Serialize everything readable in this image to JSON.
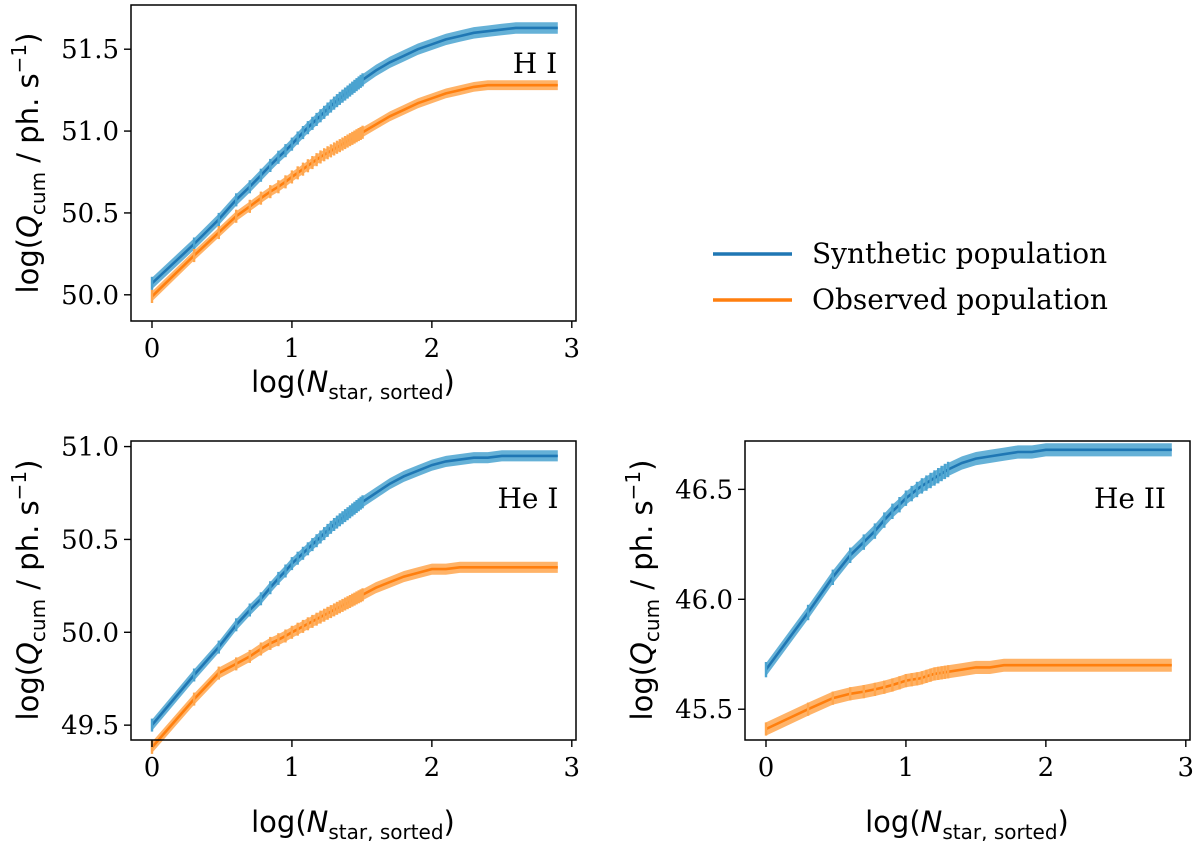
{
  "chart_data": [
    {
      "type": "line",
      "panel_label": "H I",
      "xlim": [
        -0.15,
        3.03
      ],
      "ylim": [
        49.84,
        51.77
      ],
      "xticks": [
        0,
        1,
        2,
        3
      ],
      "xtick_labels": [
        "0",
        "1",
        "2",
        "3"
      ],
      "yticks": [
        50.0,
        50.5,
        51.0,
        51.5
      ],
      "ytick_labels": [
        "50.0",
        "50.5",
        "51.0",
        "51.5"
      ],
      "xlabel": "log(N_star, sorted)",
      "ylabel": "log(Q_cum / ph. s^-1)",
      "grid": false,
      "series": [
        {
          "name": "Synthetic population",
          "color": "#1f77b4",
          "band_color": "#4aa3d0",
          "x": [
            0,
            0.301,
            0.477,
            0.602,
            0.699,
            0.778,
            0.845,
            0.903,
            0.954,
            1.0,
            1.1,
            1.2,
            1.3,
            1.4,
            1.5,
            1.6,
            1.7,
            1.8,
            1.9,
            2.0,
            2.1,
            2.2,
            2.3,
            2.4,
            2.5,
            2.6,
            2.7,
            2.8,
            2.9
          ],
          "y": [
            50.07,
            50.31,
            50.46,
            50.58,
            50.66,
            50.73,
            50.79,
            50.84,
            50.88,
            50.92,
            51.01,
            51.09,
            51.17,
            51.24,
            51.31,
            51.37,
            51.42,
            51.46,
            51.5,
            51.53,
            51.56,
            51.58,
            51.6,
            51.61,
            51.62,
            51.63,
            51.63,
            51.63,
            51.63
          ],
          "band": 0.035,
          "err": 0.04,
          "err_until_x": 1.5
        },
        {
          "name": "Observed population",
          "color": "#ff7f0e",
          "band_color": "#ffa64d",
          "x": [
            0,
            0.301,
            0.477,
            0.602,
            0.699,
            0.778,
            0.845,
            0.903,
            0.954,
            1.0,
            1.1,
            1.2,
            1.3,
            1.4,
            1.5,
            1.6,
            1.7,
            1.8,
            1.9,
            2.0,
            2.1,
            2.2,
            2.3,
            2.4,
            2.5,
            2.6,
            2.7,
            2.8,
            2.9
          ],
          "y": [
            49.99,
            50.24,
            50.38,
            50.48,
            50.54,
            50.59,
            50.63,
            50.66,
            50.69,
            50.72,
            50.78,
            50.84,
            50.89,
            50.94,
            50.99,
            51.04,
            51.09,
            51.13,
            51.17,
            51.2,
            51.23,
            51.25,
            51.27,
            51.28,
            51.28,
            51.28,
            51.28,
            51.28,
            51.28
          ],
          "band": 0.03,
          "err": 0.04,
          "err_until_x": 1.5
        }
      ]
    },
    {
      "type": "line",
      "panel_label": "He I",
      "xlim": [
        -0.15,
        3.03
      ],
      "ylim": [
        49.42,
        51.03
      ],
      "xticks": [
        0,
        1,
        2,
        3
      ],
      "xtick_labels": [
        "0",
        "1",
        "2",
        "3"
      ],
      "yticks": [
        49.5,
        50.0,
        50.5,
        51.0
      ],
      "ytick_labels": [
        "49.5",
        "50.0",
        "50.5",
        "51.0"
      ],
      "xlabel": "log(N_star, sorted)",
      "ylabel": "log(Q_cum / ph. s^-1)",
      "grid": false,
      "series": [
        {
          "name": "Synthetic population",
          "color": "#1f77b4",
          "band_color": "#4aa3d0",
          "x": [
            0,
            0.301,
            0.477,
            0.602,
            0.699,
            0.778,
            0.845,
            0.903,
            0.954,
            1.0,
            1.1,
            1.2,
            1.3,
            1.4,
            1.5,
            1.6,
            1.7,
            1.8,
            1.9,
            2.0,
            2.1,
            2.2,
            2.3,
            2.4,
            2.5,
            2.6,
            2.7,
            2.8,
            2.9
          ],
          "y": [
            49.5,
            49.77,
            49.92,
            50.04,
            50.12,
            50.18,
            50.24,
            50.29,
            50.33,
            50.37,
            50.44,
            50.51,
            50.58,
            50.64,
            50.7,
            50.75,
            50.8,
            50.84,
            50.87,
            50.9,
            50.92,
            50.93,
            50.94,
            50.94,
            50.95,
            50.95,
            50.95,
            50.95,
            50.95
          ],
          "band": 0.03,
          "err": 0.035,
          "err_until_x": 1.5
        },
        {
          "name": "Observed population",
          "color": "#ff7f0e",
          "band_color": "#ffa64d",
          "x": [
            0,
            0.301,
            0.477,
            0.602,
            0.699,
            0.778,
            0.845,
            0.903,
            0.954,
            1.0,
            1.1,
            1.2,
            1.3,
            1.4,
            1.5,
            1.6,
            1.7,
            1.8,
            1.9,
            2.0,
            2.1,
            2.2,
            2.3,
            2.4,
            2.5,
            2.6,
            2.7,
            2.8,
            2.9
          ],
          "y": [
            49.38,
            49.64,
            49.78,
            49.83,
            49.87,
            49.91,
            49.94,
            49.96,
            49.98,
            50.0,
            50.04,
            50.08,
            50.12,
            50.16,
            50.2,
            50.24,
            50.27,
            50.3,
            50.32,
            50.34,
            50.34,
            50.35,
            50.35,
            50.35,
            50.35,
            50.35,
            50.35,
            50.35,
            50.35
          ],
          "band": 0.03,
          "err": 0.035,
          "err_until_x": 1.5
        }
      ]
    },
    {
      "type": "line",
      "panel_label": "He II",
      "xlim": [
        -0.15,
        3.03
      ],
      "ylim": [
        45.36,
        46.72
      ],
      "xticks": [
        0,
        1,
        2,
        3
      ],
      "xtick_labels": [
        "0",
        "1",
        "2",
        "3"
      ],
      "yticks": [
        45.5,
        46.0,
        46.5
      ],
      "ytick_labels": [
        "45.5",
        "46.0",
        "46.5"
      ],
      "xlabel": "log(N_star, sorted)",
      "ylabel": "log(Q_cum / ph. s^-1)",
      "grid": false,
      "series": [
        {
          "name": "Synthetic population",
          "color": "#1f77b4",
          "band_color": "#4aa3d0",
          "x": [
            0,
            0.301,
            0.477,
            0.602,
            0.699,
            0.778,
            0.845,
            0.903,
            0.954,
            1.0,
            1.1,
            1.2,
            1.3,
            1.4,
            1.5,
            1.6,
            1.7,
            1.8,
            1.9,
            2.0,
            2.1,
            2.2,
            2.3,
            2.4,
            2.5,
            2.6,
            2.7,
            2.8,
            2.9
          ],
          "y": [
            45.68,
            45.94,
            46.1,
            46.2,
            46.26,
            46.31,
            46.36,
            46.4,
            46.43,
            46.46,
            46.51,
            46.55,
            46.59,
            46.62,
            46.64,
            46.65,
            46.66,
            46.67,
            46.67,
            46.68,
            46.68,
            46.68,
            46.68,
            46.68,
            46.68,
            46.68,
            46.68,
            46.68,
            46.68
          ],
          "band": 0.03,
          "err": 0.035,
          "err_until_x": 1.3
        },
        {
          "name": "Observed population",
          "color": "#ff7f0e",
          "band_color": "#ffa64d",
          "x": [
            0,
            0.301,
            0.477,
            0.602,
            0.699,
            0.778,
            0.845,
            0.903,
            0.954,
            1.0,
            1.1,
            1.2,
            1.3,
            1.4,
            1.5,
            1.6,
            1.7,
            1.8,
            1.9,
            2.0,
            2.1,
            2.2,
            2.3,
            2.4,
            2.5,
            2.6,
            2.7,
            2.8,
            2.9
          ],
          "y": [
            45.41,
            45.5,
            45.55,
            45.57,
            45.58,
            45.59,
            45.6,
            45.61,
            45.62,
            45.63,
            45.64,
            45.66,
            45.67,
            45.68,
            45.69,
            45.69,
            45.7,
            45.7,
            45.7,
            45.7,
            45.7,
            45.7,
            45.7,
            45.7,
            45.7,
            45.7,
            45.7,
            45.7,
            45.7
          ],
          "band": 0.03,
          "err": 0.03,
          "err_until_x": 1.3
        }
      ]
    }
  ],
  "legend": {
    "placement": "right of top panel",
    "entries": [
      {
        "label": "Synthetic population",
        "color": "#1f77b4"
      },
      {
        "label": "Observed population",
        "color": "#ff7f0e"
      }
    ]
  },
  "labels": {
    "ylabel_prefix": "log(",
    "ylabel_Q": "Q",
    "ylabel_sub": "cum",
    "ylabel_unit": " / ph. s",
    "ylabel_exp": "−1",
    "ylabel_suffix": ")",
    "xlabel_prefix": "log(",
    "xlabel_N": "N",
    "xlabel_sub": "star, sorted",
    "xlabel_suffix": ")"
  }
}
